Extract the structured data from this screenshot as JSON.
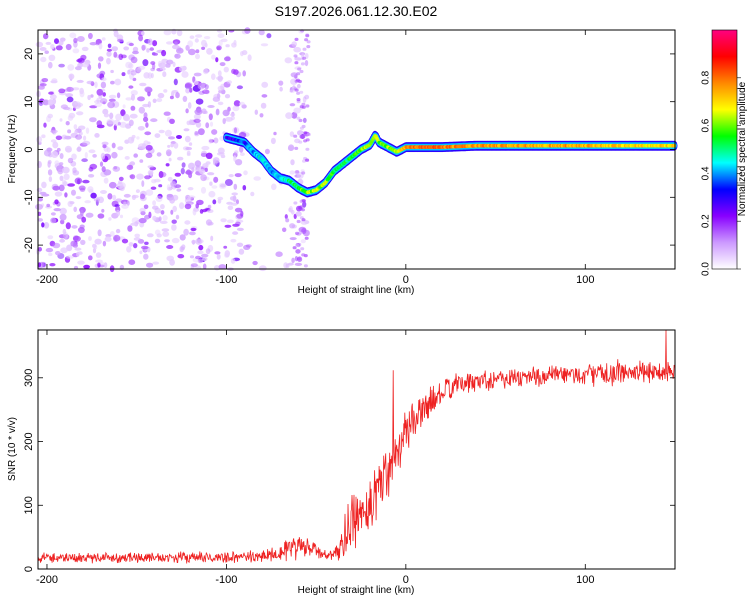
{
  "title": "S197.2026.061.12.30.E02",
  "chart_data": [
    {
      "type": "heatmap",
      "title": "",
      "xlabel": "Height of straight line (km)",
      "ylabel": "Frequency (Hz)",
      "xlim": [
        -205,
        150
      ],
      "ylim": [
        -25,
        25
      ],
      "xticks": [
        -200,
        -100,
        0,
        100
      ],
      "yticks": [
        -20,
        -10,
        0,
        10,
        20
      ],
      "colorbar": {
        "label": "Normalized spectral amplitude",
        "range": [
          0.0,
          1.0
        ],
        "ticks": [
          0.0,
          0.2,
          0.4,
          0.6,
          0.8
        ],
        "colormap": [
          "#ffffff",
          "#cc99ff",
          "#8800ff",
          "#0000ff",
          "#00ffff",
          "#00ff00",
          "#ffff00",
          "#ff8800",
          "#ff0000",
          "#ff0080"
        ]
      },
      "noise_region_x": [
        -205,
        -55
      ],
      "main_signal": {
        "name": "signal track",
        "x": [
          -100,
          -95,
          -90,
          -85,
          -80,
          -75,
          -70,
          -65,
          -60,
          -55,
          -50,
          -45,
          -40,
          -35,
          -30,
          -25,
          -20,
          -17,
          -15,
          -10,
          -5,
          0,
          10,
          20,
          40,
          60,
          80,
          100,
          120,
          150
        ],
        "freq": [
          2.5,
          2.0,
          1.5,
          -0.5,
          -2.0,
          -4.5,
          -6.0,
          -6.5,
          -8.0,
          -9.0,
          -8.5,
          -7.0,
          -4.5,
          -3.0,
          -1.5,
          0.0,
          1.0,
          3.0,
          1.5,
          0.5,
          -0.5,
          0.5,
          0.5,
          0.5,
          0.8,
          0.8,
          0.8,
          0.8,
          0.8,
          0.8
        ],
        "amplitude": [
          0.3,
          0.3,
          0.35,
          0.4,
          0.45,
          0.4,
          0.45,
          0.5,
          0.55,
          0.6,
          0.65,
          0.6,
          0.55,
          0.5,
          0.55,
          0.6,
          0.65,
          0.6,
          0.6,
          0.6,
          0.6,
          0.75,
          0.85,
          0.8,
          0.75,
          0.75,
          0.75,
          0.75,
          0.7,
          0.7
        ]
      }
    },
    {
      "type": "line",
      "title": "",
      "xlabel": "Height of straight line (km)",
      "ylabel": "SNR (10 * v/v)",
      "xlim": [
        -205,
        150
      ],
      "ylim": [
        0,
        375
      ],
      "xticks": [
        -200,
        -100,
        0,
        100
      ],
      "yticks": [
        0,
        100,
        200,
        300
      ],
      "series": [
        {
          "name": "SNR",
          "color": "#ee2222",
          "x": [
            -205,
            -180,
            -150,
            -120,
            -100,
            -80,
            -70,
            -60,
            -50,
            -45,
            -40,
            -35,
            -30,
            -25,
            -20,
            -15,
            -10,
            -5,
            0,
            5,
            10,
            15,
            20,
            25,
            30,
            40,
            50,
            60,
            80,
            100,
            120,
            150
          ],
          "y": [
            18,
            18,
            18,
            18,
            18,
            20,
            28,
            35,
            30,
            22,
            20,
            45,
            70,
            85,
            105,
            130,
            155,
            190,
            215,
            235,
            250,
            265,
            275,
            285,
            290,
            295,
            300,
            300,
            303,
            305,
            308,
            310
          ],
          "noise_amplitude": [
            10,
            10,
            10,
            10,
            10,
            12,
            20,
            25,
            15,
            10,
            10,
            40,
            50,
            55,
            60,
            60,
            55,
            50,
            40,
            35,
            30,
            28,
            25,
            22,
            20,
            20,
            20,
            20,
            20,
            20,
            22,
            22
          ],
          "spikes": [
            {
              "x": -7,
              "y": 312
            },
            {
              "x": 145,
              "y": 375
            }
          ]
        }
      ]
    }
  ]
}
